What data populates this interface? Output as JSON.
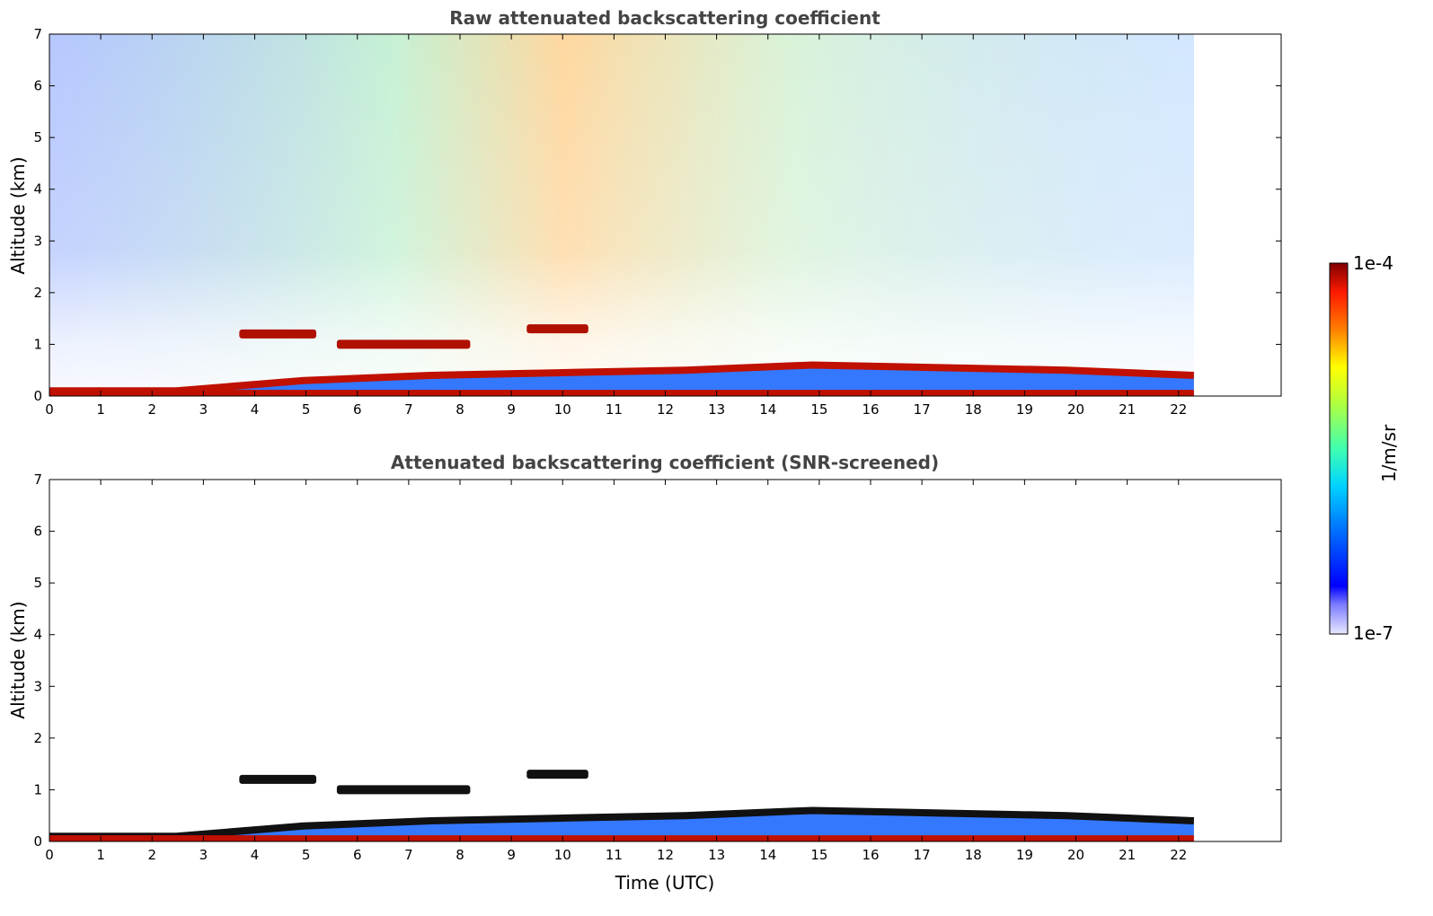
{
  "chart_data": [
    {
      "type": "heatmap",
      "title": "Raw attenuated backscattering coefficient",
      "xlabel": "",
      "ylabel": "Altitude (km)",
      "xlim": [
        0,
        24
      ],
      "ylim": [
        0,
        7
      ],
      "xticks": [
        "0",
        "1",
        "2",
        "3",
        "4",
        "5",
        "6",
        "7",
        "8",
        "9",
        "10",
        "11",
        "12",
        "13",
        "14",
        "15",
        "16",
        "17",
        "18",
        "19",
        "20",
        "21",
        "22"
      ],
      "yticks": [
        "0",
        "1",
        "2",
        "3",
        "4",
        "5",
        "6",
        "7"
      ],
      "data_end_time": 22.3,
      "layers": [
        {
          "kind": "boundary-layer",
          "t_start": 0,
          "t_end": 22.3,
          "alt_km": [
            0.1,
            0.1,
            0.3,
            0.4,
            0.45,
            0.5,
            0.6,
            0.55,
            0.5,
            0.4
          ]
        },
        {
          "kind": "elevated-layer",
          "t_start": 3.7,
          "t_end": 5.2,
          "alt_km": 1.2
        },
        {
          "kind": "elevated-layer",
          "t_start": 5.6,
          "t_end": 8.2,
          "alt_km": 1.0
        },
        {
          "kind": "elevated-layer",
          "t_start": 9.3,
          "t_end": 10.5,
          "alt_km": 1.3
        }
      ],
      "grid": false
    },
    {
      "type": "heatmap",
      "title": "Attenuated backscattering coefficient (SNR-screened)",
      "xlabel": "Time (UTC)",
      "ylabel": "Altitude (km)",
      "xlim": [
        0,
        24
      ],
      "ylim": [
        0,
        7
      ],
      "xticks": [
        "0",
        "1",
        "2",
        "3",
        "4",
        "5",
        "6",
        "7",
        "8",
        "9",
        "10",
        "11",
        "12",
        "13",
        "14",
        "15",
        "16",
        "17",
        "18",
        "19",
        "20",
        "21",
        "22"
      ],
      "yticks": [
        "0",
        "1",
        "2",
        "3",
        "4",
        "5",
        "6",
        "7"
      ],
      "data_end_time": 22.3,
      "grid": false
    }
  ],
  "colorbar": {
    "max_label": "1e-4",
    "min_label": "1e-7",
    "label": "1/m/sr",
    "scale": "log",
    "colormap": "jet"
  }
}
